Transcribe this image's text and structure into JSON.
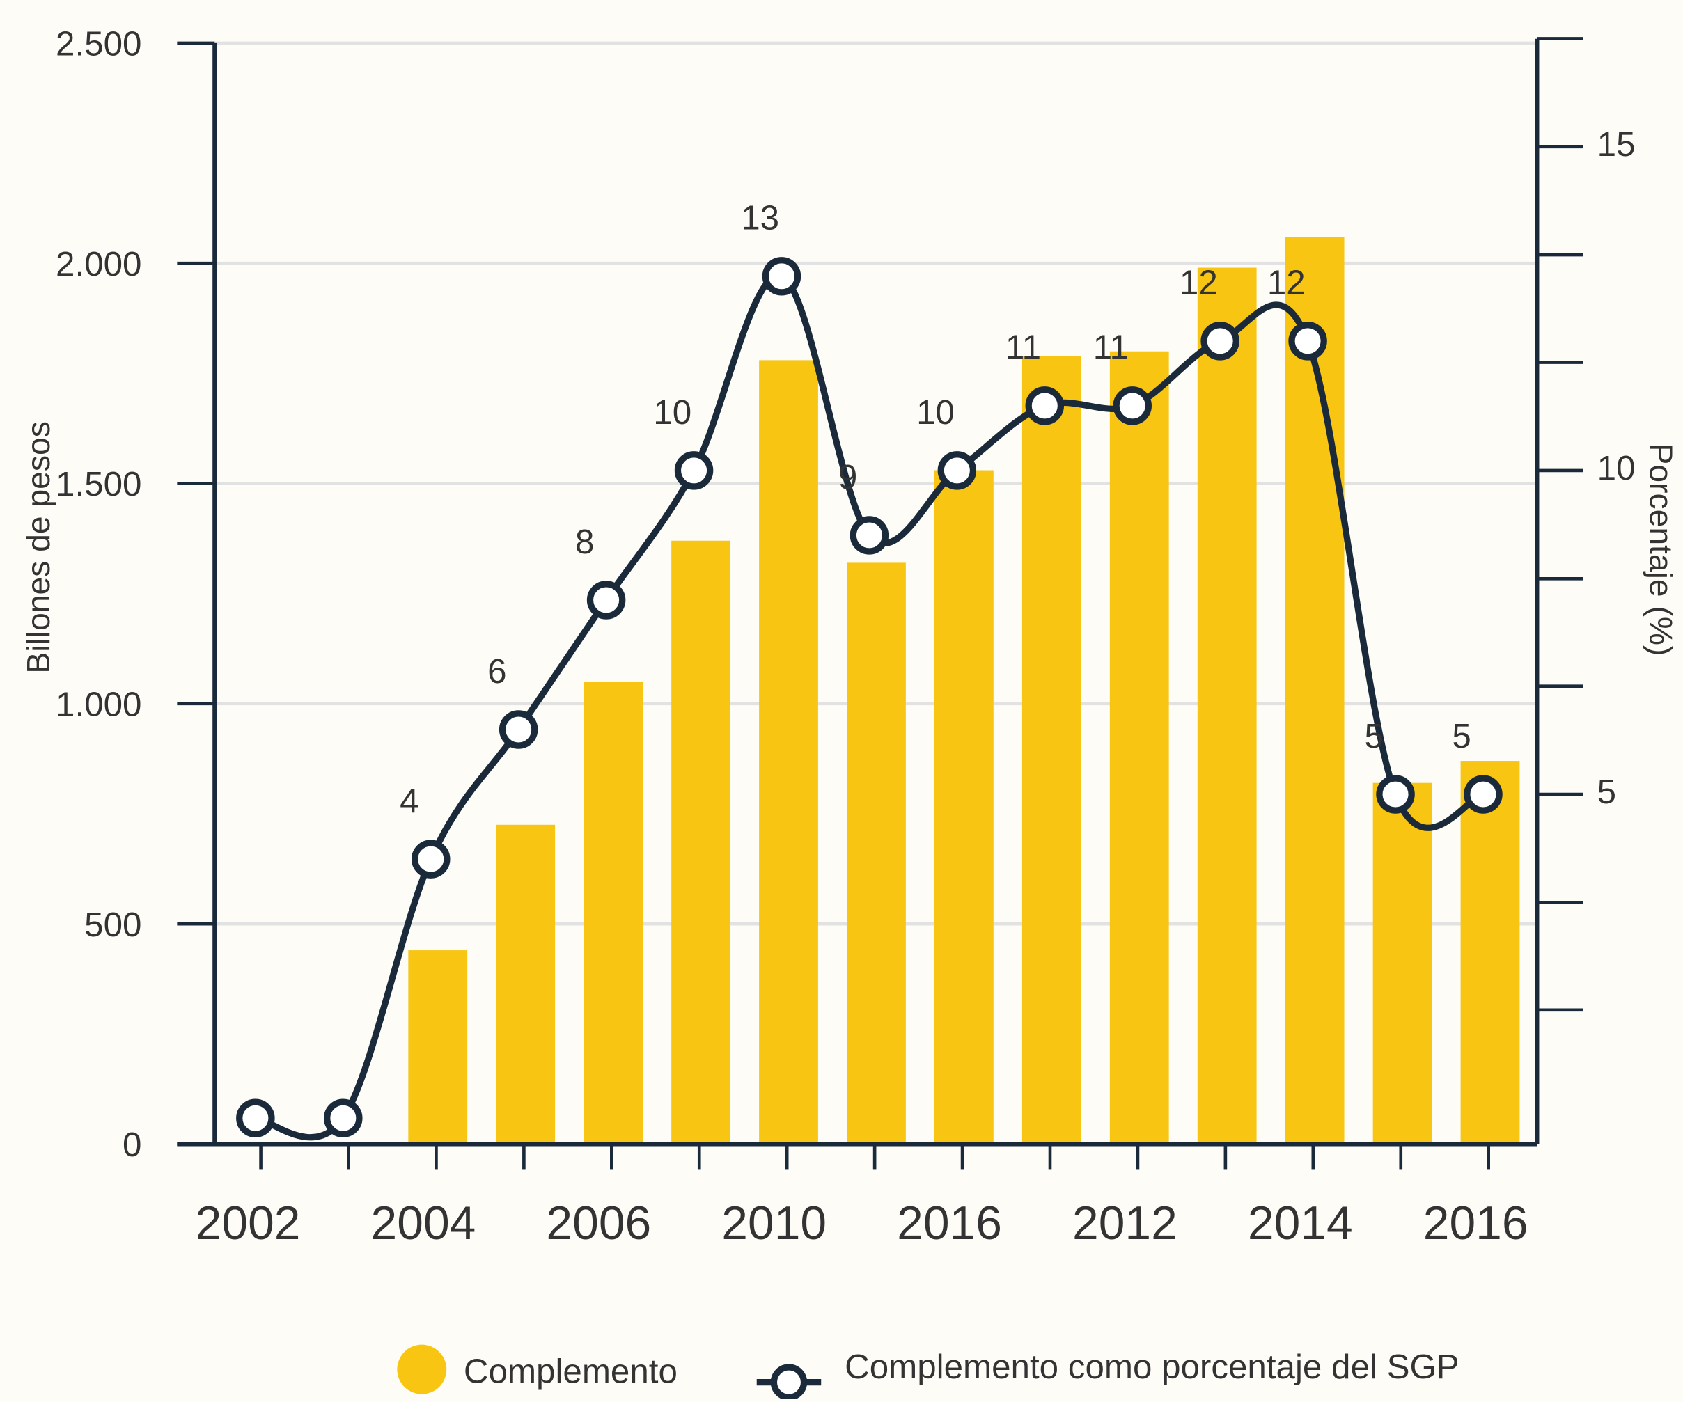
{
  "chart_data": {
    "type": "bar_line",
    "categories": [
      "2002",
      null,
      "2004",
      null,
      "2006",
      null,
      "2010",
      null,
      "2016",
      null,
      "2012",
      null,
      "2014",
      null,
      "2016"
    ],
    "series": [
      {
        "name": "Complemento",
        "type": "bar",
        "color": "#f7c512",
        "values": [
          null,
          null,
          440,
          725,
          1050,
          1370,
          1780,
          1320,
          1530,
          1790,
          1800,
          1990,
          2060,
          820,
          870
        ]
      },
      {
        "name": "Complemento como porcentaje del SGP",
        "type": "line",
        "axis": "y2",
        "color": "#1b2a3a",
        "values": [
          0,
          0,
          4,
          6,
          8,
          10,
          13,
          9,
          10,
          11,
          11,
          12,
          12,
          5,
          5
        ],
        "value_labels": [
          null,
          null,
          "4",
          "6",
          "8",
          "10",
          "13",
          "9",
          "10",
          "11",
          "11",
          "12",
          "12",
          "5",
          "5"
        ]
      }
    ],
    "ylabel": "Billones de pesos",
    "y2label": "Porcentaje (%)",
    "ylim": [
      0,
      2500
    ],
    "yticks": [
      0,
      500,
      {
        "value": 1000,
        "label": "1.000"
      },
      {
        "value": 1500,
        "label": "1.500"
      },
      {
        "value": 2000,
        "label": "2.000"
      },
      {
        "value": 2500,
        "label": "2.500"
      }
    ],
    "y2lim": [
      -0.4,
      16.6
    ],
    "y2ticks": [
      5,
      10,
      15
    ],
    "y2minorticks": [
      1.67,
      3.33,
      6.67,
      8.33,
      11.67,
      13.33,
      16.67
    ],
    "grid": true,
    "legend": "bottom"
  }
}
